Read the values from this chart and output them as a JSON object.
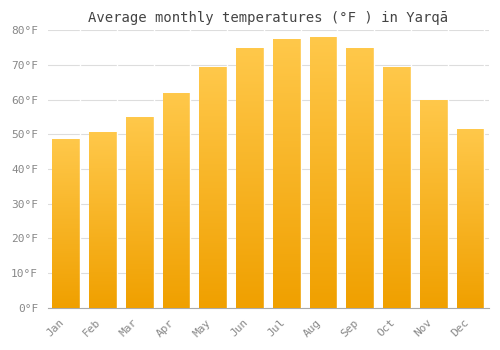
{
  "title": "Average monthly temperatures (°F ) in Yarqā",
  "months": [
    "Jan",
    "Feb",
    "Mar",
    "Apr",
    "May",
    "Jun",
    "Jul",
    "Aug",
    "Sep",
    "Oct",
    "Nov",
    "Dec"
  ],
  "values": [
    48.5,
    50.5,
    55.0,
    62.0,
    69.5,
    75.0,
    77.5,
    78.0,
    75.0,
    69.5,
    60.0,
    51.5
  ],
  "bar_color_top": "#FFC84A",
  "bar_color_bottom": "#F0A000",
  "background_color": "#FFFFFF",
  "grid_color": "#DDDDDD",
  "ylim": [
    0,
    80
  ],
  "yticks": [
    0,
    10,
    20,
    30,
    40,
    50,
    60,
    70,
    80
  ],
  "ytick_labels": [
    "0°F",
    "10°F",
    "20°F",
    "30°F",
    "40°F",
    "50°F",
    "60°F",
    "70°F",
    "80°F"
  ],
  "title_fontsize": 10,
  "tick_fontsize": 8,
  "title_color": "#444444",
  "tick_color": "#888888"
}
